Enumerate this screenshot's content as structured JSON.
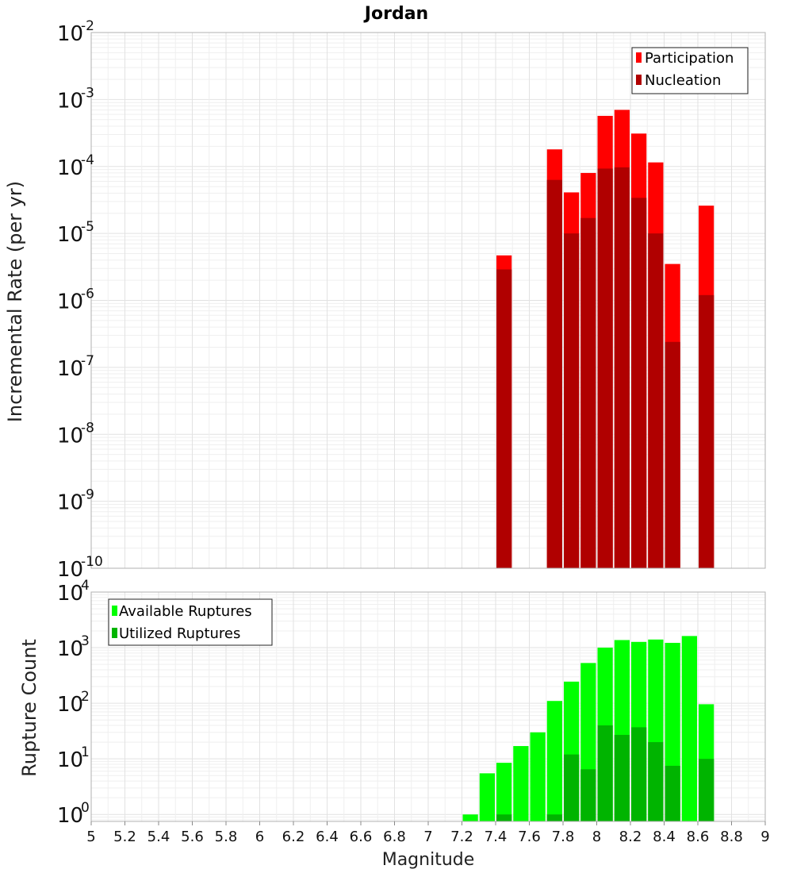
{
  "chart_data": [
    {
      "type": "bar",
      "title": "Jordan",
      "xlabel": "",
      "ylabel": "Incremental Rate (per yr)",
      "yscale": "log",
      "ylim": [
        1e-10,
        0.01
      ],
      "xlim": [
        5,
        9
      ],
      "bin_width": 0.1,
      "y_ticks": [
        {
          "base": "10",
          "exp": "-10"
        },
        {
          "base": "10",
          "exp": "-9"
        },
        {
          "base": "10",
          "exp": "-8"
        },
        {
          "base": "10",
          "exp": "-7"
        },
        {
          "base": "10",
          "exp": "-6"
        },
        {
          "base": "10",
          "exp": "-5"
        },
        {
          "base": "10",
          "exp": "-4"
        },
        {
          "base": "10",
          "exp": "-3"
        },
        {
          "base": "10",
          "exp": "-2"
        }
      ],
      "legend_position": "top-right",
      "series": [
        {
          "name": "Participation",
          "color": "#ff0000",
          "x": [
            7.45,
            7.75,
            7.85,
            7.95,
            8.05,
            8.15,
            8.25,
            8.35,
            8.45,
            8.65
          ],
          "values": [
            4.7e-06,
            0.00018,
            4.1e-05,
            8e-05,
            0.00057,
            0.0007,
            0.00031,
            0.000115,
            3.5e-06,
            2.6e-05
          ]
        },
        {
          "name": "Nucleation",
          "color": "#b00000",
          "x": [
            7.45,
            7.75,
            7.85,
            7.95,
            8.05,
            8.15,
            8.25,
            8.35,
            8.45,
            8.65
          ],
          "values": [
            2.9e-06,
            6.3e-05,
            1e-05,
            1.7e-05,
            9.3e-05,
            9.7e-05,
            3.4e-05,
            1e-05,
            2.4e-07,
            1.2e-06
          ]
        }
      ]
    },
    {
      "type": "bar",
      "title": "",
      "xlabel": "Magnitude",
      "ylabel": "Rupture Count",
      "yscale": "log",
      "ylim": [
        0.75,
        10000
      ],
      "xlim": [
        5,
        9
      ],
      "bin_width": 0.1,
      "x_tick_labels": [
        "5",
        "5.2",
        "5.4",
        "5.6",
        "5.8",
        "6",
        "6.2",
        "6.4",
        "6.6",
        "6.8",
        "7",
        "7.2",
        "7.4",
        "7.6",
        "7.8",
        "8",
        "8.2",
        "8.4",
        "8.6",
        "8.8",
        "9"
      ],
      "y_ticks": [
        {
          "base": "10",
          "exp": "0"
        },
        {
          "base": "10",
          "exp": "1"
        },
        {
          "base": "10",
          "exp": "2"
        },
        {
          "base": "10",
          "exp": "3"
        },
        {
          "base": "10",
          "exp": "4"
        }
      ],
      "legend_position": "top-left",
      "series": [
        {
          "name": "Available Ruptures",
          "color": "#00ff00",
          "x": [
            7.25,
            7.35,
            7.45,
            7.55,
            7.65,
            7.75,
            7.85,
            7.95,
            8.05,
            8.15,
            8.25,
            8.35,
            8.45,
            8.55,
            8.65
          ],
          "values": [
            1,
            5.5,
            8.5,
            17,
            30,
            110,
            245,
            530,
            1000,
            1370,
            1270,
            1400,
            1220,
            1620,
            96
          ]
        },
        {
          "name": "Utilized Ruptures",
          "color": "#00b400",
          "x": [
            7.45,
            7.75,
            7.85,
            7.95,
            8.05,
            8.15,
            8.25,
            8.35,
            8.45,
            8.65
          ],
          "values": [
            1,
            1,
            12,
            6.5,
            40,
            27,
            37,
            20,
            7.5,
            10
          ]
        }
      ]
    }
  ]
}
